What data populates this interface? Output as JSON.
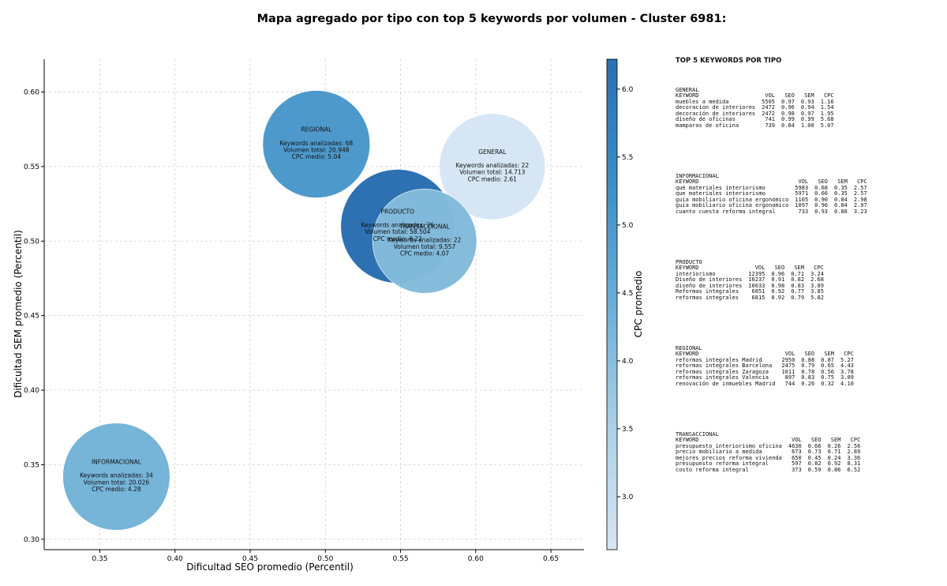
{
  "title": "Mapa agregado por tipo con top 5 keywords por volumen - Cluster 6981:",
  "chart_data": {
    "type": "scatter",
    "title": "Mapa agregado por tipo con top 5 keywords por volumen - Cluster 6981:",
    "xlabel": "Dificultad SEO promedio (Percentil)",
    "ylabel": "Dificultad SEM promedio (Percentil)",
    "xlim": [
      0.313,
      0.672
    ],
    "ylim": [
      0.293,
      0.622
    ],
    "xticks": [
      0.35,
      0.4,
      0.45,
      0.5,
      0.55,
      0.6,
      0.65
    ],
    "yticks": [
      0.3,
      0.35,
      0.4,
      0.45,
      0.5,
      0.55,
      0.6
    ],
    "xtick_labels": [
      "0.35",
      "0.40",
      "0.45",
      "0.50",
      "0.55",
      "0.60",
      "0.65"
    ],
    "ytick_labels": [
      "0.30",
      "0.35",
      "0.40",
      "0.45",
      "0.50",
      "0.55",
      "0.60"
    ],
    "grid": true,
    "colorbar": {
      "label": "CPC promedio",
      "min": 2.61,
      "max": 6.22,
      "ticks": [
        3.0,
        3.5,
        4.0,
        4.5,
        5.0,
        5.5,
        6.0
      ],
      "tick_labels": [
        "3.0",
        "3.5",
        "4.0",
        "4.5",
        "5.0",
        "5.5",
        "6.0"
      ],
      "colormap": [
        "#d6e6f4",
        "#abd0e6",
        "#6aaed6",
        "#3d8dc4",
        "#2a6fb2"
      ]
    },
    "points": [
      {
        "name": "GENERAL",
        "x": 0.611,
        "y": 0.55,
        "keywords": 22,
        "volume": 14713,
        "cpc": 2.61,
        "lines": [
          "GENERAL",
          "",
          "Keywords analizadas: 22",
          "Volumen total: 14.713",
          "CPC medio: 2.61"
        ]
      },
      {
        "name": "INFORMACIONAL",
        "x": 0.361,
        "y": 0.342,
        "keywords": 34,
        "volume": 20026,
        "cpc": 4.28,
        "lines": [
          "INFORMACIONAL",
          "",
          "Keywords analizadas: 34",
          "Volumen total: 20.026",
          "CPC medio: 4.28"
        ]
      },
      {
        "name": "REGIONAL",
        "x": 0.494,
        "y": 0.565,
        "keywords": 68,
        "volume": 20948,
        "cpc": 5.04,
        "lines": [
          "REGIONAL",
          "",
          "Keywords analizadas: 68",
          "Volumen total: 20.948",
          "CPC medio: 5.04"
        ]
      },
      {
        "name": "PRODUCTO",
        "x": 0.548,
        "y": 0.51,
        "keywords": 36,
        "volume": 58504,
        "cpc": 6.22,
        "lines": [
          "PRODUCTO",
          "",
          "Keywords analizadas: 36",
          "Volumen total: 58.504",
          "CPC medio: 6.22"
        ]
      },
      {
        "name": "TRANSACCIONAL",
        "x": 0.566,
        "y": 0.5,
        "keywords": 22,
        "volume": 9557,
        "cpc": 4.07,
        "lines": [
          "TRANSACCIONAL",
          "",
          "Keywords analizadas: 22",
          "Volumen total: 9.557",
          "CPC medio: 4.07"
        ]
      }
    ]
  },
  "side_panel": {
    "title": "TOP 5 KEYWORDS POR TIPO",
    "headers": [
      "KEYWORD",
      "VOL",
      "SEO",
      "SEM",
      "CPC"
    ],
    "groups": [
      {
        "name": "GENERAL",
        "rows": [
          [
            "muebles a medida",
            "5505",
            "0.97",
            "0.93",
            "1.16"
          ],
          [
            "decoracion de interiores",
            "2472",
            "0.96",
            "0.94",
            "1.54"
          ],
          [
            "decoración de interiores",
            "2472",
            "0.98",
            "0.97",
            "1.95"
          ],
          [
            "diseño de oficinas",
            "741",
            "0.99",
            "0.99",
            "5.68"
          ],
          [
            "mamparas de oficina",
            "739",
            "0.84",
            "1.00",
            "5.07"
          ]
        ]
      },
      {
        "name": "INFORMACIONAL",
        "rows": [
          [
            "qué materiales interiorismo",
            "5983",
            "0.68",
            "0.35",
            "2.57"
          ],
          [
            "que materiales interiorismo",
            "5971",
            "0.66",
            "0.35",
            "2.57"
          ],
          [
            "guía mobiliario oficina ergonómico",
            "1105",
            "0.90",
            "0.84",
            "2.98"
          ],
          [
            "guia mobiliario oficina ergonomico",
            "1097",
            "0.90",
            "0.84",
            "2.97"
          ],
          [
            "cuanto cuesta reforma integral",
            "733",
            "0.93",
            "0.88",
            "3.23"
          ]
        ]
      },
      {
        "name": "PRODUCTO",
        "rows": [
          [
            "interiorismo",
            "12395",
            "0.96",
            "0.71",
            "3.24"
          ],
          [
            "Diseño de interiores",
            "10237",
            "0.91",
            "0.82",
            "2.68"
          ],
          [
            "diseño de interiores",
            "10033",
            "0.98",
            "0.83",
            "3.89"
          ],
          [
            "Reformas integrales",
            "6851",
            "0.92",
            "0.77",
            "3.85"
          ],
          [
            "reformas integrales",
            "6815",
            "0.92",
            "0.79",
            "5.82"
          ]
        ]
      },
      {
        "name": "REGIONAL",
        "rows": [
          [
            "reformas integrales Madrid",
            "2950",
            "0.88",
            "0.87",
            "5.27"
          ],
          [
            "reformas integrales Barcelona",
            "2475",
            "0.79",
            "0.65",
            "4.43"
          ],
          [
            "reformas integrales Zaragoza",
            "1011",
            "0.78",
            "0.56",
            "3.78"
          ],
          [
            "reformas integrales Valencia",
            "897",
            "0.83",
            "0.75",
            "3.09"
          ],
          [
            "renovación de inmuebles Madrid",
            "744",
            "0.26",
            "0.32",
            "4.10"
          ]
        ]
      },
      {
        "name": "TRANSACCIONAL",
        "rows": [
          [
            "presupuesto interiorismo oficina",
            "4630",
            "0.66",
            "0.26",
            "2.56"
          ],
          [
            "precio mobiliario a medida",
            "673",
            "0.73",
            "0.71",
            "2.89"
          ],
          [
            "mejores precios reforma vivienda",
            "650",
            "0.45",
            "0.24",
            "3.36"
          ],
          [
            "presupuesto reforma integral",
            "597",
            "0.82",
            "0.92",
            "8.31"
          ],
          [
            "costo reforma integral",
            "373",
            "0.59",
            "0.86",
            "6.52"
          ]
        ]
      }
    ]
  }
}
